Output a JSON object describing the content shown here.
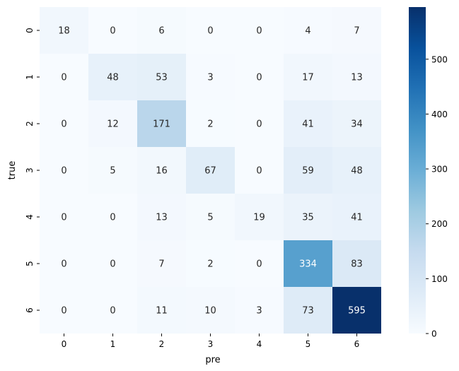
{
  "chart_data": {
    "type": "heatmap",
    "xlabel": "pre",
    "ylabel": "true",
    "x_categories": [
      "0",
      "1",
      "2",
      "3",
      "4",
      "5",
      "6"
    ],
    "y_categories": [
      "0",
      "1",
      "2",
      "3",
      "4",
      "5",
      "6"
    ],
    "values": [
      [
        18,
        0,
        6,
        0,
        0,
        4,
        7
      ],
      [
        0,
        48,
        53,
        3,
        0,
        17,
        13
      ],
      [
        0,
        12,
        171,
        2,
        0,
        41,
        34
      ],
      [
        0,
        5,
        16,
        67,
        0,
        59,
        48
      ],
      [
        0,
        0,
        13,
        5,
        19,
        35,
        41
      ],
      [
        0,
        0,
        7,
        2,
        0,
        334,
        83
      ],
      [
        0,
        0,
        11,
        10,
        3,
        73,
        595
      ]
    ],
    "colorbar": {
      "colormap": "Blues",
      "vmin": 0,
      "vmax": 595,
      "ticks": [
        "0",
        "100",
        "200",
        "300",
        "400",
        "500"
      ]
    }
  }
}
